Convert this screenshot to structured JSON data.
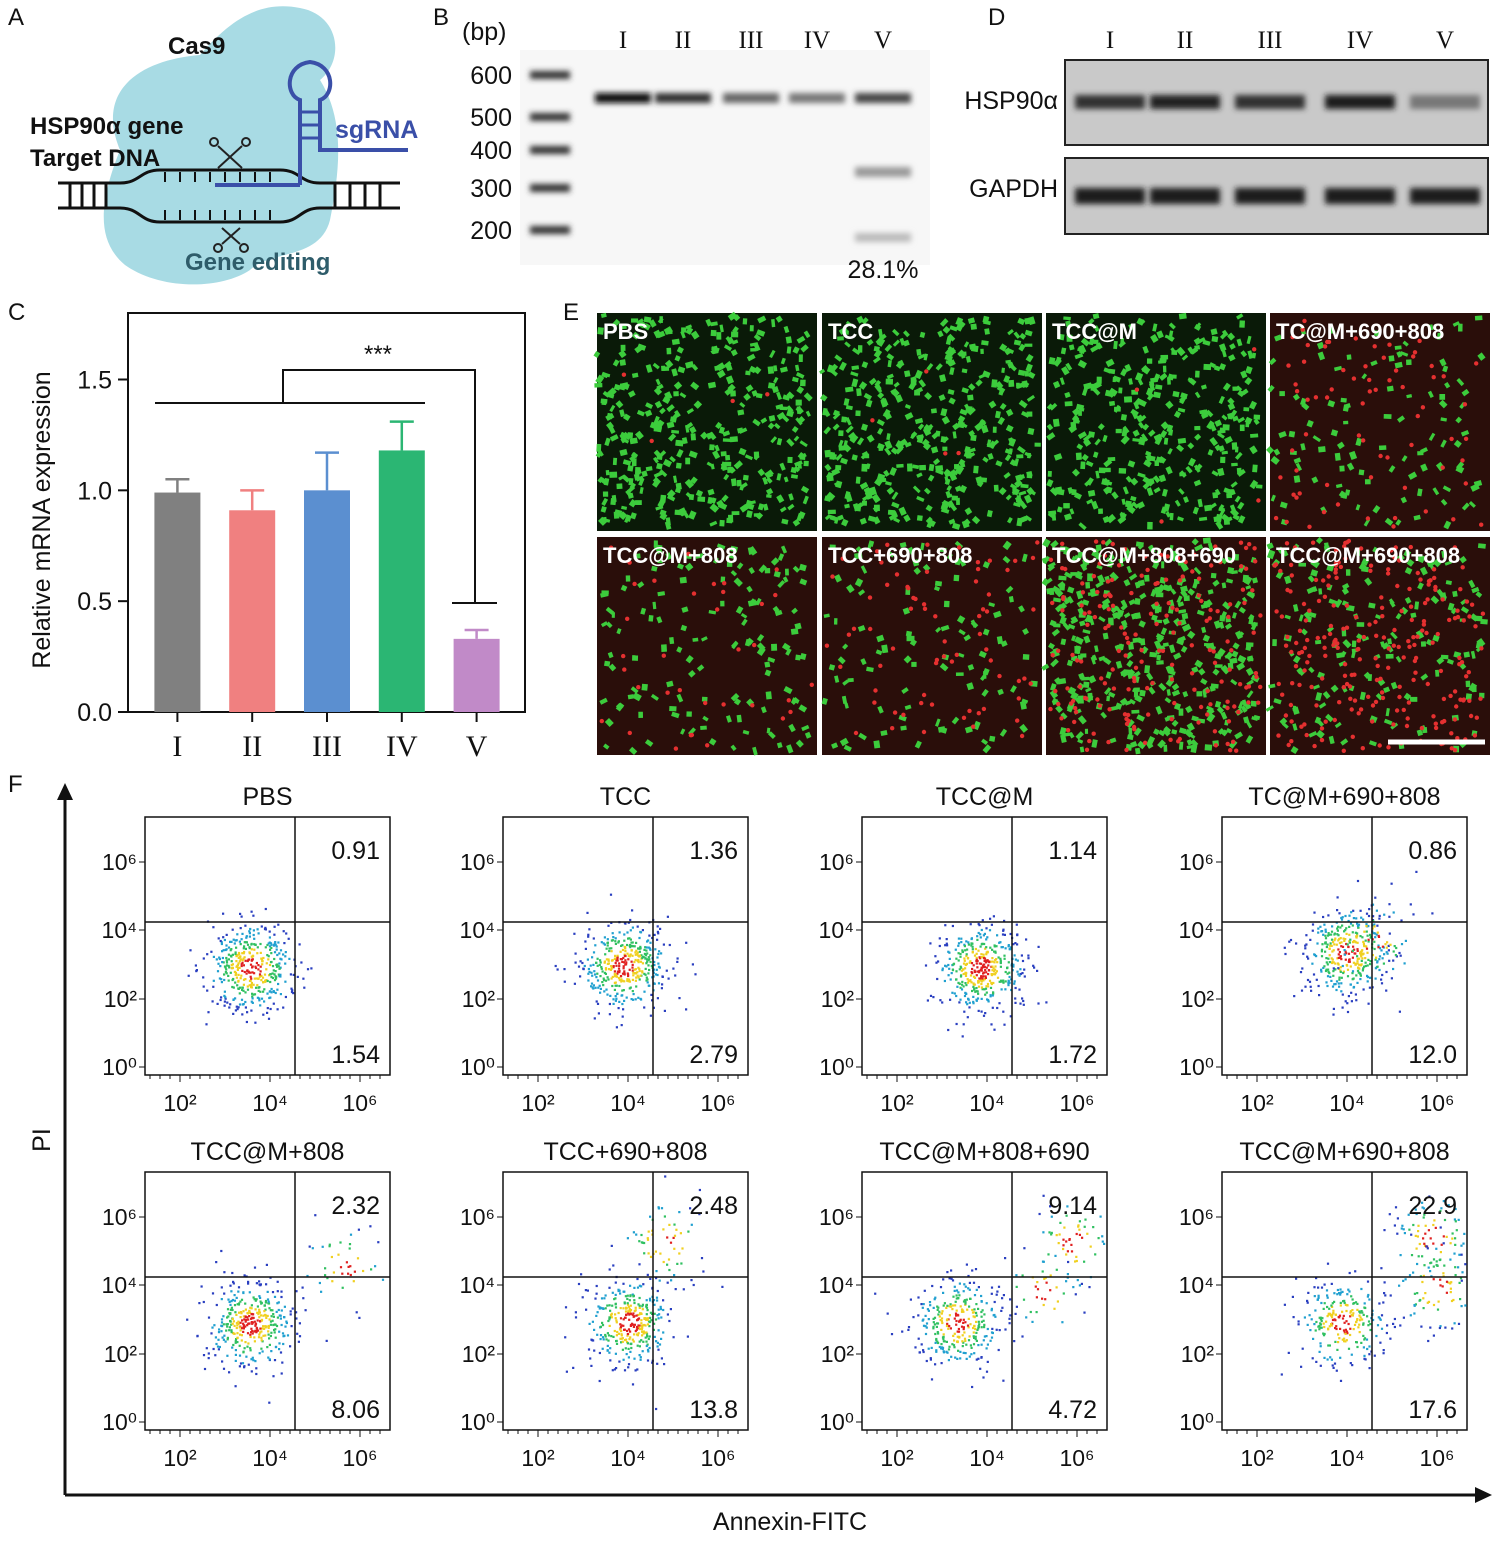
{
  "panel_labels": [
    "A",
    "B",
    "C",
    "D",
    "E",
    "F"
  ],
  "panel_a": {
    "cas9": "Cas9",
    "sgrna": "sgRNA",
    "gene": "HSP90α gene",
    "target": "Target DNA",
    "editing": "Gene editing"
  },
  "panel_b": {
    "unit": "(bp)",
    "ladder": [
      "600",
      "500",
      "400",
      "300",
      "200"
    ],
    "lanes": [
      "I",
      "II",
      "III",
      "IV",
      "V"
    ],
    "efficiency": "28.1%"
  },
  "chart_data": {
    "type": "bar",
    "y_label": "Relative mRNA expression",
    "categories": [
      "I",
      "II",
      "III",
      "IV",
      "V"
    ],
    "values": [
      0.99,
      0.91,
      1.0,
      1.18,
      0.33
    ],
    "errors": [
      0.06,
      0.09,
      0.17,
      0.13,
      0.04
    ],
    "colors": [
      "#808080",
      "#f08080",
      "#5b8fd0",
      "#2bb673",
      "#c18ac8"
    ],
    "ylim": [
      0,
      1.8
    ],
    "yticks": [
      {
        "value": 0,
        "label": "0.0"
      },
      0.5,
      {
        "value": 1,
        "label": "1.0"
      },
      1.5
    ],
    "annotation": "***"
  },
  "panel_d": {
    "lanes": [
      "I",
      "II",
      "III",
      "IV",
      "V"
    ],
    "rows": [
      "HSP90α",
      "GAPDH"
    ]
  },
  "panel_e": {
    "images": [
      "PBS",
      "TCC",
      "TCC@M",
      "TC@M+690+808",
      "TCC@M+808",
      "TCC+690+808",
      "TCC@M+808+690",
      "TCC@M+690+808"
    ]
  },
  "panel_f": {
    "x_label": "Annexin-FITC",
    "y_label": "PI",
    "yticks": [
      "10⁶",
      "10⁴",
      "10²",
      "10⁰"
    ],
    "xticks": [
      "10²",
      "10⁴",
      "10⁶"
    ],
    "plots": [
      {
        "title": "PBS",
        "upper_right": "0.91",
        "lower_right": "1.54"
      },
      {
        "title": "TCC",
        "upper_right": "1.36",
        "lower_right": "2.79"
      },
      {
        "title": "TCC@M",
        "upper_right": "1.14",
        "lower_right": "1.72"
      },
      {
        "title": "TC@M+690+808",
        "upper_right": "0.86",
        "lower_right": "12.0"
      },
      {
        "title": "TCC@M+808",
        "upper_right": "2.32",
        "lower_right": "8.06"
      },
      {
        "title": "TCC+690+808",
        "upper_right": "2.48",
        "lower_right": "13.8"
      },
      {
        "title": "TCC@M+808+690",
        "upper_right": "9.14",
        "lower_right": "4.72"
      },
      {
        "title": "TCC@M+690+808",
        "upper_right": "22.9",
        "lower_right": "17.6"
      }
    ]
  }
}
